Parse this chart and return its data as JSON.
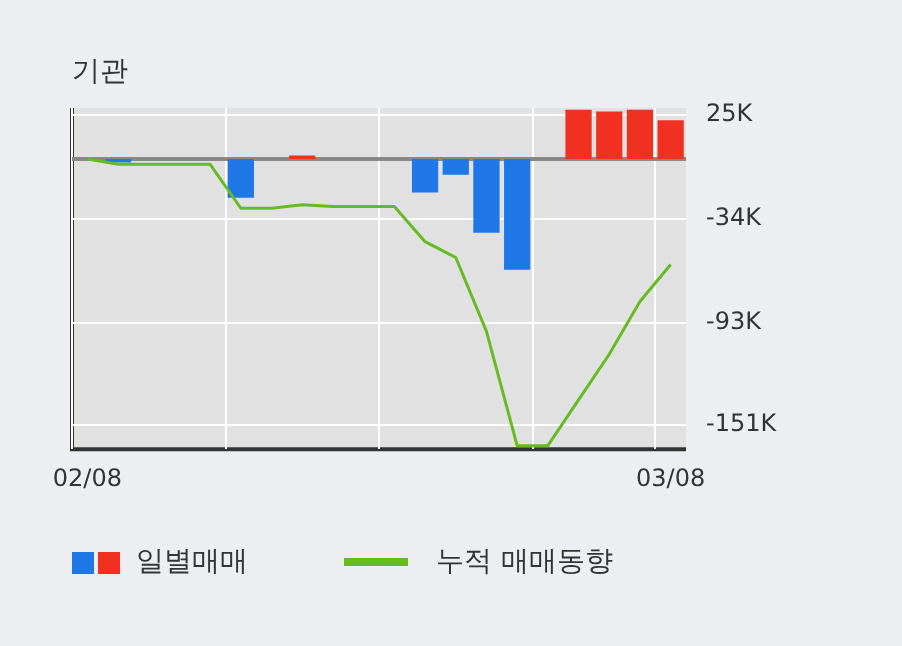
{
  "chart_data": {
    "type": "bar",
    "title": "기관",
    "categories": [
      "02/08",
      null,
      null,
      null,
      null,
      null,
      null,
      null,
      null,
      null,
      null,
      null,
      null,
      null,
      null,
      null,
      null,
      null,
      null,
      "03/08"
    ],
    "series": [
      {
        "name": "일별매매",
        "type": "bar",
        "values": [
          null,
          -2,
          null,
          null,
          null,
          -22,
          null,
          2,
          null,
          null,
          null,
          -19,
          -9,
          -42,
          -63,
          null,
          28,
          27,
          28,
          22
        ],
        "colors": [
          "#1f77e8",
          "#1f77e8",
          "#1f77e8",
          "#1f77e8",
          "#1f77e8",
          "#1f77e8",
          "#1f77e8",
          "#f03020",
          "#1f77e8",
          "#1f77e8",
          "#1f77e8",
          "#1f77e8",
          "#1f77e8",
          "#1f77e8",
          "#1f77e8",
          "#1f77e8",
          "#f03020",
          "#f03020",
          "#f03020",
          "#f03020"
        ]
      },
      {
        "name": "누적 매매동향",
        "type": "line",
        "color": "#66bb22",
        "values": [
          0,
          -3,
          -3,
          -3,
          -3,
          -28,
          -28,
          -26,
          -27,
          -27,
          -27,
          -47,
          -56,
          -98,
          -163,
          -163,
          -137,
          -111,
          -81,
          -60
        ]
      }
    ],
    "ylim": [
      -165,
      29
    ],
    "yticks": [
      {
        "value": 25,
        "label": "25K"
      },
      {
        "value": -34,
        "label": "-34K"
      },
      {
        "value": -93,
        "label": "-93K"
      },
      {
        "value": -151,
        "label": "-151K"
      }
    ],
    "ref_lines": [
      {
        "axis": "y",
        "value": 0,
        "color": "#888888"
      }
    ],
    "grid": true,
    "legend": "bottom",
    "marker": "none",
    "line_style": "solid"
  }
}
